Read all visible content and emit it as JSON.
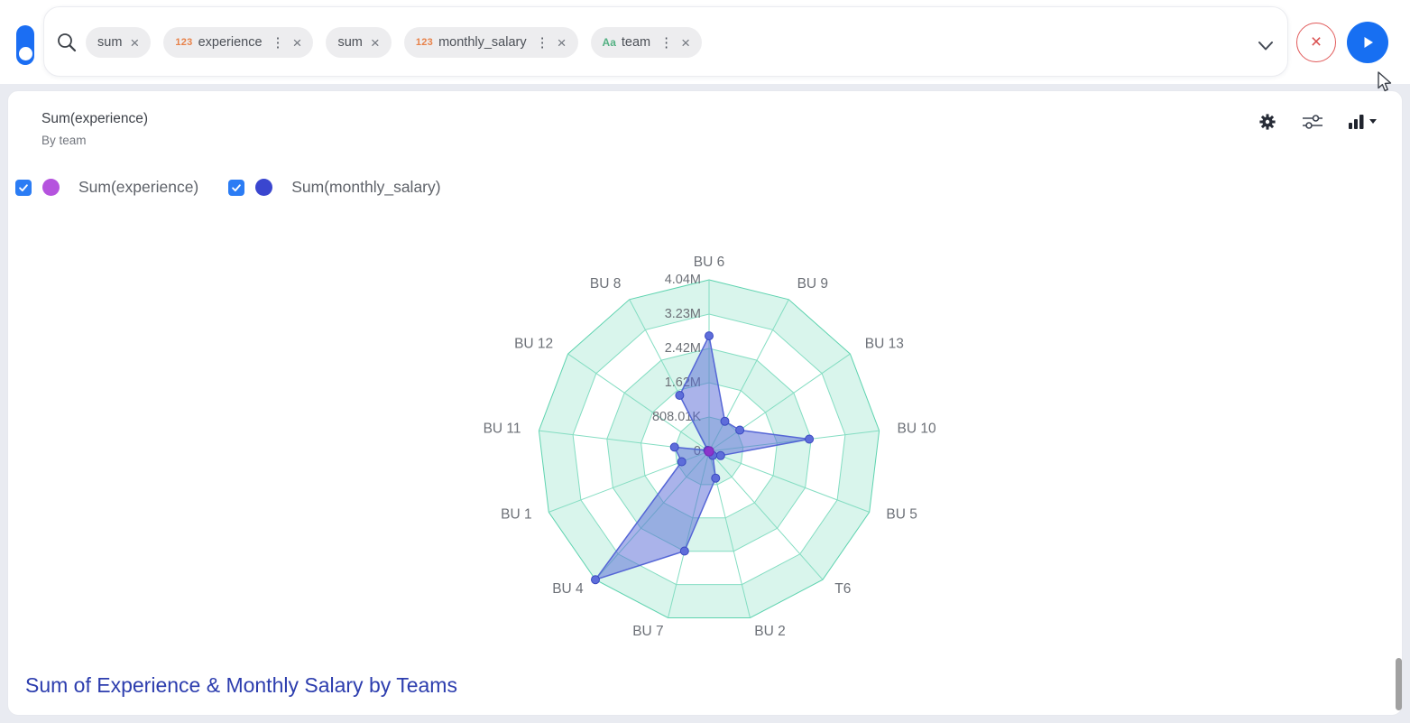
{
  "topbar": {
    "search_tokens": [
      {
        "prefix": "",
        "prefix_kind": "none",
        "label": "sum",
        "has_menu": false
      },
      {
        "prefix": "123",
        "prefix_kind": "number",
        "label": "experience",
        "has_menu": true
      },
      {
        "prefix": "",
        "prefix_kind": "none",
        "label": "sum",
        "has_menu": false
      },
      {
        "prefix": "123",
        "prefix_kind": "number",
        "label": "monthly_salary",
        "has_menu": true
      },
      {
        "prefix": "Aa",
        "prefix_kind": "text",
        "label": "team",
        "has_menu": true
      }
    ],
    "icons": [
      "search-icon",
      "chevron-down-icon",
      "abort-icon",
      "play-icon"
    ]
  },
  "card": {
    "title": "Sum(experience)",
    "subtitle": "By team",
    "header_icons": [
      "settings-gear-icon",
      "sliders-icon",
      "chart-type-bar-icon"
    ],
    "legend": [
      {
        "label": "Sum(experience)",
        "color": "#b553de",
        "checked": true
      },
      {
        "label": "Sum(monthly_salary)",
        "color": "#3a46cf",
        "checked": true
      }
    ],
    "footer_title": "Sum of Experience & Monthly Salary by Teams"
  },
  "chart_data": {
    "type": "radar",
    "categories": [
      "BU 6",
      "BU 9",
      "BU 13",
      "BU 10",
      "BU 5",
      "T6",
      "BU 2",
      "BU 7",
      "BU 4",
      "BU 1",
      "BU 11",
      "BU 12",
      "BU 8"
    ],
    "series": [
      {
        "name": "Sum(experience)",
        "color": "#8b35cc",
        "approx": true,
        "values": [
          300,
          180,
          210,
          400,
          90,
          40,
          150,
          380,
          520,
          160,
          190,
          30,
          260
        ]
      },
      {
        "name": "Sum(monthly_salary)",
        "color": "#5566d6",
        "approx": true,
        "values": [
          2720000,
          800000,
          880000,
          2380000,
          290000,
          130000,
          650000,
          2420000,
          4040000,
          690000,
          820000,
          40000,
          1490000
        ]
      }
    ],
    "tick_labels": [
      "0",
      "808.01K",
      "1.62M",
      "2.42M",
      "3.23M",
      "4.04M"
    ],
    "max_value": 4040050,
    "grid": {
      "band_fill": "#d9f5ec",
      "line_color": "#84ddc2",
      "outer_line_color": "#5ed3af",
      "bands_on": true
    },
    "label_color": "#6c7077",
    "legend_position": "top-left"
  },
  "colors": {
    "accent_blue": "#176ff2",
    "abort_red": "#d94f4f",
    "checkbox_blue": "#2b7cf4",
    "footer_blue": "#2c3dae",
    "series_fill_blue": "rgba(86,104,214,0.5)"
  }
}
